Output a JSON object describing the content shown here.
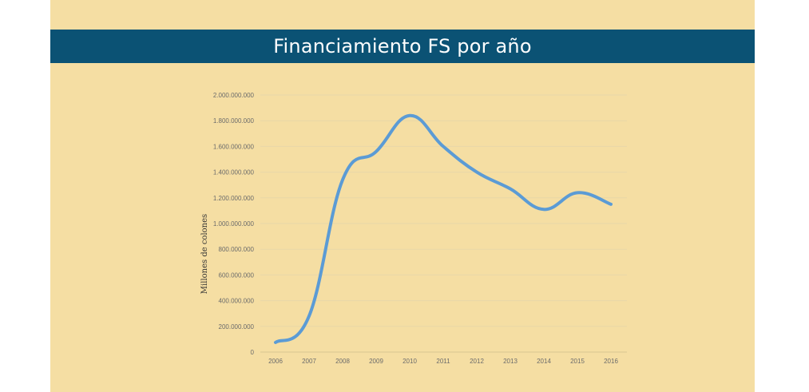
{
  "header": {
    "title": "Financiamiento FS por año"
  },
  "colors": {
    "background": "#f5dea3",
    "title_bar": "#0b5274",
    "line": "#5b9bd5",
    "grid": "#e8d7a8"
  },
  "chart_data": {
    "type": "line",
    "title": "Financiamiento FS por año",
    "xlabel": "",
    "ylabel": "Millones de colones",
    "categories": [
      "2006",
      "2007",
      "2008",
      "2009",
      "2010",
      "2011",
      "2012",
      "2013",
      "2014",
      "2015",
      "2016"
    ],
    "y_ticks": [
      "0",
      "200.000.000",
      "400.000.000",
      "600.000.000",
      "800.000.000",
      "1.000.000.000",
      "1.200.000.000",
      "1.400.000.000",
      "1.600.000.000",
      "1.800.000.000",
      "2.000.000.000"
    ],
    "ylim": [
      0,
      2000000000
    ],
    "grid": true,
    "legend": "none",
    "series": [
      {
        "values": [
          75000000,
          280000000,
          1340000000,
          1560000000,
          1840000000,
          1600000000,
          1400000000,
          1270000000,
          1110000000,
          1240000000,
          1150000000
        ]
      }
    ]
  }
}
